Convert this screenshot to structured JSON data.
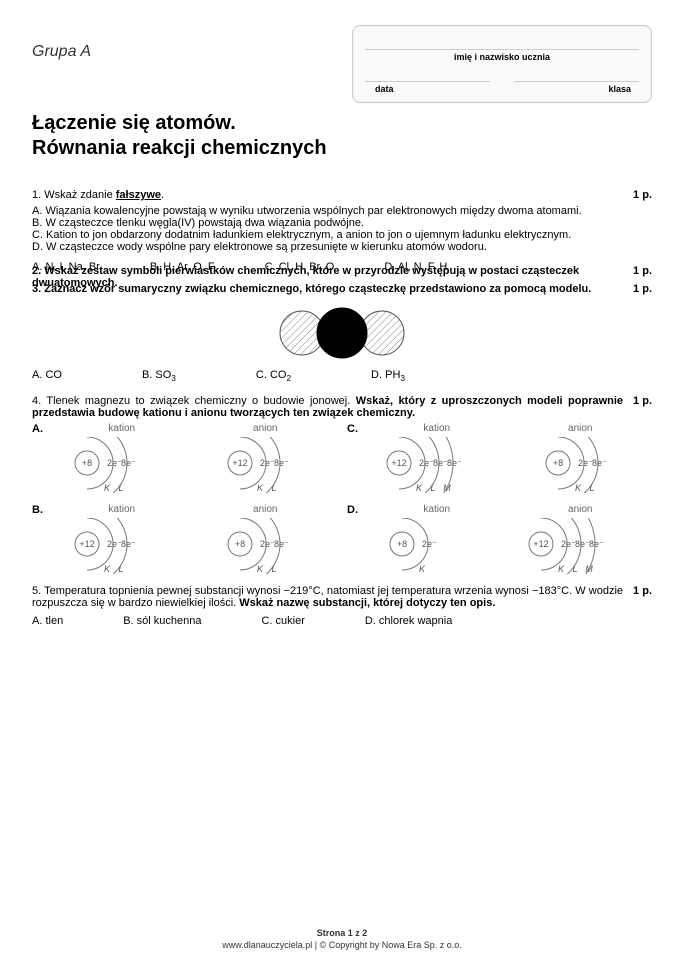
{
  "header": {
    "group": "Grupa A",
    "name_label": "imię i nazwisko ucznia",
    "date_label": "data",
    "class_label": "klasa"
  },
  "title_line1": "Łączenie się atomów.",
  "title_line2": "Równania reakcji chemicznych",
  "q1": {
    "prompt_prefix": "1. Wskaż zdanie ",
    "prompt_underlined": "fałszywe",
    "prompt_suffix": ".",
    "points": "1 p.",
    "A": "A. Wiązania kowalencyjne powstają w wyniku utworzenia wspólnych par elektronowych między dwoma atomami.",
    "B": "B. W cząsteczce tlenku węgla(IV) powstają dwa wiązania podwójne.",
    "C": "C. Kation to jon obdarzony dodatnim ładunkiem elektrycznym, a anion to jon o ujemnym ładunku elektrycznym.",
    "D": "D. W cząsteczce wody wspólne pary elektronowe są przesunięte w kierunku atomów wodoru."
  },
  "q2": {
    "prompt": "2. Wskaż zestaw symboli pierwiastków chemicznych, które w przyrodzie występują w postaci cząsteczek dwuatomowych.",
    "points": "1 p.",
    "A": "A. N, I, Na, Br",
    "B": "B. H, Ar, O, F",
    "C": "C. Cl, H, Br, O",
    "D": "D. Al, N, F, H"
  },
  "q3": {
    "prompt": "3. Zaznacz wzór sumaryczny związku chemicznego, którego cząsteczkę przedstawiono za pomocą modelu.",
    "points": "1 p.",
    "A": "A. CO",
    "B_pre": "B. SO",
    "B_sub": "3",
    "C_pre": "C. CO",
    "C_sub": "2",
    "D_pre": "D. PH",
    "D_sub": "3",
    "model": {
      "circle_r": 22,
      "fill_outer": "#ffffff",
      "fill_center": "#000000",
      "hatch_stroke": "#888888"
    }
  },
  "q4": {
    "prompt": "4. Tlenek magnezu to związek chemiczny o budowie jonowej. Wskaż, który z uproszczonych modeli poprawnie przedstawia budowę kationu i anionu tworzących ten związek chemiczny.",
    "points": "1 p.",
    "kation_label": "kation",
    "anion_label": "anion",
    "models": {
      "A": {
        "kation": {
          "z": "+8",
          "shells": [
            "2e⁻",
            "8e⁻"
          ],
          "letters": [
            "K",
            "L"
          ]
        },
        "anion": {
          "z": "+12",
          "shells": [
            "2e⁻",
            "8e⁻"
          ],
          "letters": [
            "K",
            "L"
          ]
        }
      },
      "B": {
        "kation": {
          "z": "+12",
          "shells": [
            "2e⁻",
            "8e⁻"
          ],
          "letters": [
            "K",
            "L"
          ]
        },
        "anion": {
          "z": "+8",
          "shells": [
            "2e⁻",
            "8e⁻"
          ],
          "letters": [
            "K",
            "L"
          ]
        }
      },
      "C": {
        "kation": {
          "z": "+12",
          "shells": [
            "2e⁻",
            "8e⁻",
            "8e⁻"
          ],
          "letters": [
            "K",
            "L",
            "M"
          ]
        },
        "anion": {
          "z": "+8",
          "shells": [
            "2e⁻",
            "8e⁻"
          ],
          "letters": [
            "K",
            "L"
          ]
        }
      },
      "D": {
        "kation": {
          "z": "+8",
          "shells": [
            "2e⁻"
          ],
          "letters": [
            "K"
          ]
        },
        "anion": {
          "z": "+12",
          "shells": [
            "2e⁻",
            "8e⁻",
            "8e⁻"
          ],
          "letters": [
            "K",
            "L",
            "M"
          ]
        }
      }
    }
  },
  "q5": {
    "prompt": "5. Temperatura topnienia pewnej substancji wynosi −219°C, natomiast jej temperatura wrzenia wynosi −183°C. W wodzie rozpuszcza się w bardzo niewielkiej ilości. Wskaż nazwę substancji, której dotyczy ten opis.",
    "points": "1 p.",
    "A": "A. tlen",
    "B": "B. sól kuchenna",
    "C": "C. cukier",
    "D": "D. chlorek wapnia"
  },
  "footer": {
    "page": "Strona 1 z 2",
    "copy": "www.dlanauczyciela.pl | © Copyright by Nowa Era Sp. z o.o."
  }
}
